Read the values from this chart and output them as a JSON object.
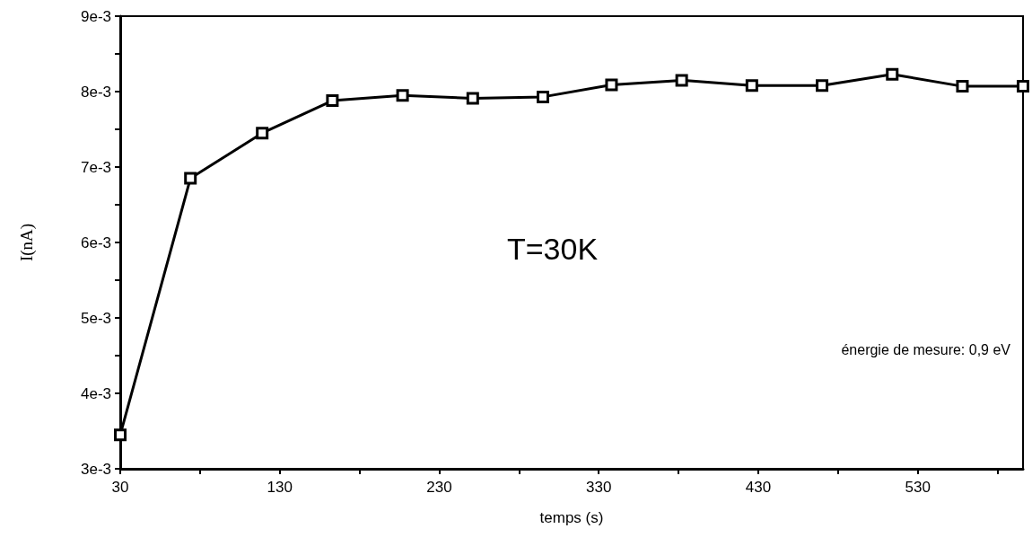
{
  "chart_data": {
    "type": "line",
    "xlabel": "temps (s)",
    "ylabel": "I(nA)",
    "x": [
      30,
      74,
      119,
      163,
      207,
      251,
      295,
      338,
      382,
      426,
      470,
      514,
      558,
      596
    ],
    "series": [
      {
        "color": "#000000",
        "values": [
          0.00345,
          0.00685,
          0.00745,
          0.00788,
          0.00795,
          0.00791,
          0.00793,
          0.00809,
          0.00815,
          0.00808,
          0.00808,
          0.00823,
          0.00807,
          0.00807
        ]
      }
    ],
    "xlim": [
      30,
      596
    ],
    "xticks": [
      30,
      {
        "value": 80,
        "label": null
      },
      130,
      {
        "value": 180,
        "label": null
      },
      230,
      {
        "value": 280,
        "label": null
      },
      330,
      {
        "value": 380,
        "label": null
      },
      430,
      {
        "value": 480,
        "label": null
      },
      530,
      {
        "value": 580,
        "label": null
      }
    ],
    "ylim": [
      0.003,
      0.009
    ],
    "yticks": [
      {
        "value": 0.003,
        "label": "3e-3"
      },
      {
        "value": 0.0035,
        "label": null
      },
      {
        "value": 0.004,
        "label": "4e-3"
      },
      {
        "value": 0.0045,
        "label": null
      },
      {
        "value": 0.005,
        "label": "5e-3"
      },
      {
        "value": 0.0055,
        "label": null
      },
      {
        "value": 0.006,
        "label": "6e-3"
      },
      {
        "value": 0.0065,
        "label": null
      },
      {
        "value": 0.007,
        "label": "7e-3"
      },
      {
        "value": 0.0075,
        "label": null
      },
      {
        "value": 0.008,
        "label": "8e-3"
      },
      {
        "value": 0.0085,
        "label": null
      },
      {
        "value": 0.009,
        "label": "9e-3"
      }
    ],
    "annotations": [
      "T=30K",
      "énergie de mesure: 0,9 eV"
    ],
    "marker": "square",
    "line_style": "solid",
    "grid": false
  }
}
